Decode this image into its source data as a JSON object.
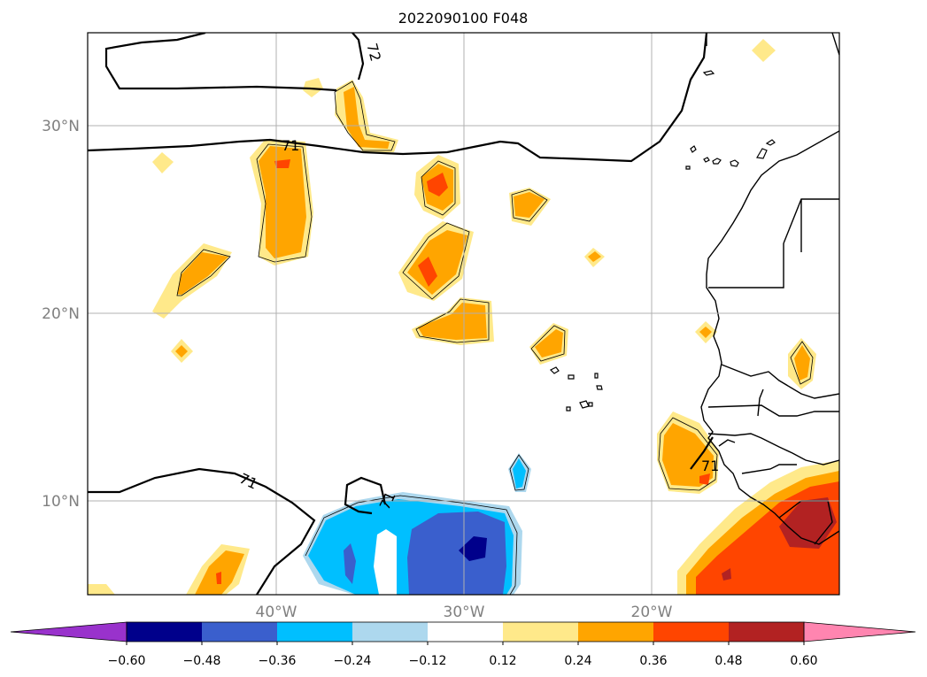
{
  "title": "2022090100 F048",
  "map": {
    "lon_labels": [
      "40°W",
      "30°W",
      "20°W"
    ],
    "lat_labels": [
      "30°N",
      "20°N",
      "10°N"
    ],
    "contour_labels": [
      "72",
      "71",
      "71",
      "71",
      "71"
    ],
    "grid": true
  },
  "colorbar": {
    "tick_labels": [
      "−0.60",
      "−0.48",
      "−0.36",
      "−0.24",
      "−0.12",
      "0.12",
      "0.24",
      "0.36",
      "0.48",
      "0.60"
    ],
    "colors": [
      "#9932cc",
      "#00008b",
      "#3a5fcd",
      "#00bfff",
      "#add8ee",
      "#ffffff",
      "#ffe98a",
      "#ffa500",
      "#ff4500",
      "#b22222",
      "#ff85b0"
    ]
  }
}
